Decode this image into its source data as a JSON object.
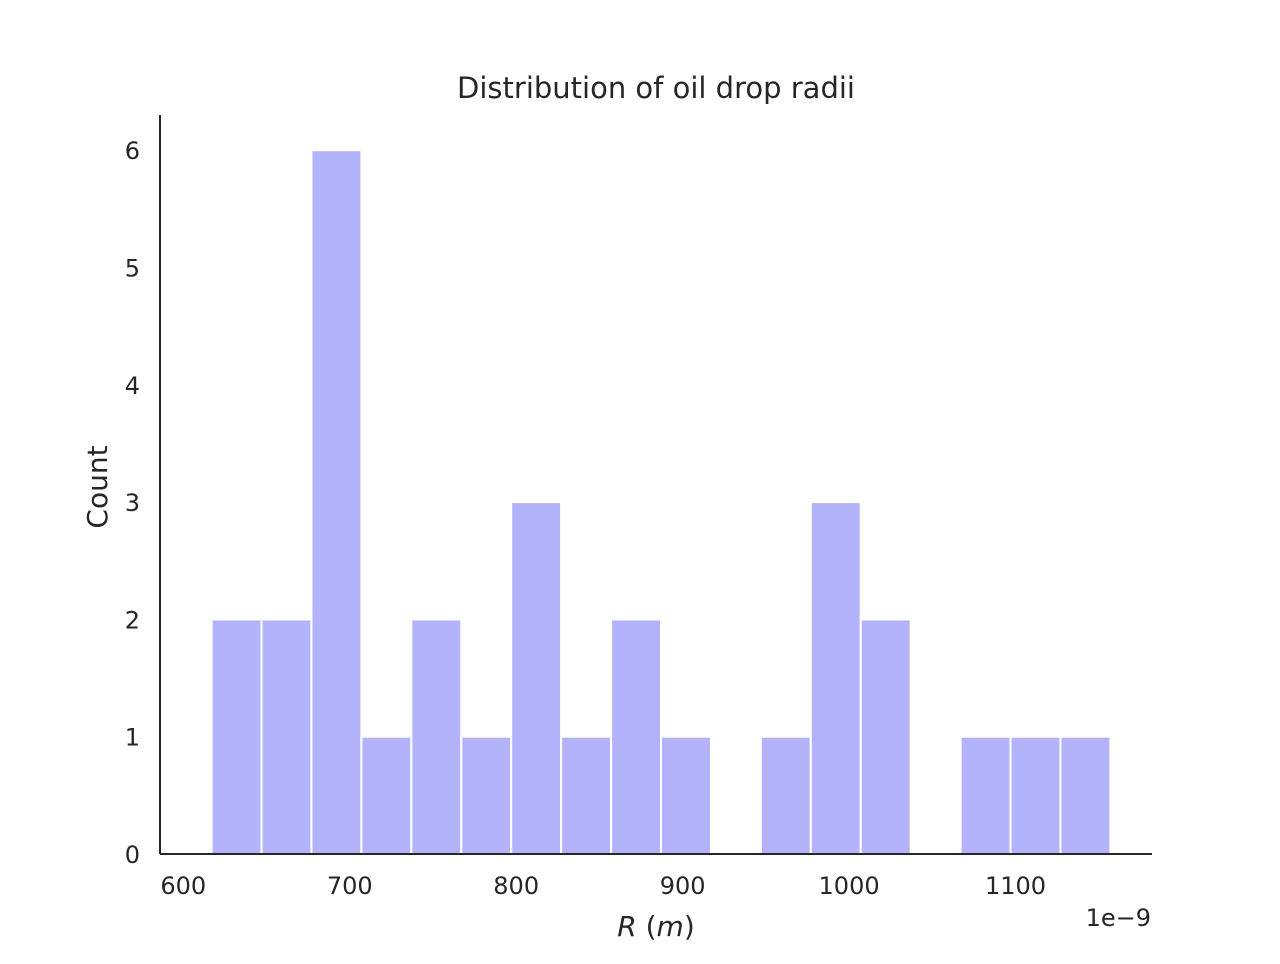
{
  "chart_data": {
    "type": "bar",
    "title": "Distribution of oil drop radii",
    "xlabel": "R (m)",
    "ylabel": "Count",
    "x_offset_label": "1e−9",
    "x_multiplier": 1e-09,
    "bar_color": "#b3b3fc",
    "axis_color": "#262626",
    "bin_edges": [
      617,
      647,
      677,
      707,
      737,
      767,
      797,
      827,
      857,
      887,
      917,
      947,
      977,
      1007,
      1037,
      1067,
      1097,
      1127,
      1157
    ],
    "counts": [
      2,
      2,
      6,
      1,
      2,
      1,
      3,
      1,
      2,
      1,
      0,
      1,
      3,
      2,
      0,
      1,
      1,
      1
    ],
    "xlim": [
      586,
      1182
    ],
    "ylim": [
      0,
      6.3
    ],
    "xticks": [
      600,
      700,
      800,
      900,
      1000,
      1100
    ],
    "xtick_labels": [
      "600",
      "700",
      "800",
      "900",
      "1000",
      "1100"
    ],
    "yticks": [
      0,
      1,
      2,
      3,
      4,
      5,
      6
    ],
    "ytick_labels": [
      "0",
      "1",
      "2",
      "3",
      "4",
      "5",
      "6"
    ],
    "grid": false,
    "spines": [
      "left",
      "bottom"
    ]
  }
}
